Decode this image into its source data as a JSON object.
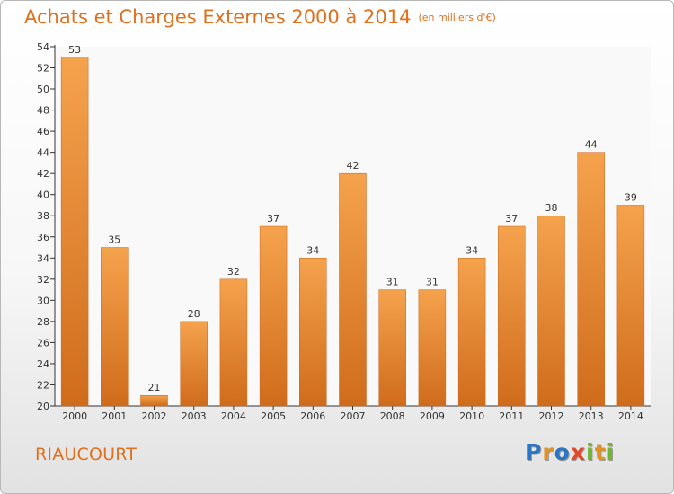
{
  "header": {
    "title": "Achats et Charges Externes 2000 à 2014",
    "unit": "(en milliers d'€)"
  },
  "footer": {
    "commune": "RIAUCOURT",
    "logo_letters": [
      "P",
      "r",
      "o",
      "x",
      "i",
      "t",
      "i"
    ]
  },
  "colors": {
    "accent": "#e0701c",
    "bar_light": "#f5a24d",
    "bar_dark": "#cf6c1c"
  },
  "chart_data": {
    "type": "bar",
    "title": "Achats et Charges Externes 2000 à 2014",
    "subtitle": "(en milliers d'€)",
    "categories": [
      "2000",
      "2001",
      "2002",
      "2003",
      "2004",
      "2005",
      "2006",
      "2007",
      "2008",
      "2009",
      "2010",
      "2011",
      "2012",
      "2013",
      "2014"
    ],
    "values": [
      53,
      35,
      21,
      28,
      32,
      37,
      34,
      42,
      31,
      31,
      34,
      37,
      38,
      44,
      39
    ],
    "data_labels": [
      "53",
      "35",
      "21",
      "28",
      "32",
      "37",
      "34",
      "42",
      "31",
      "31",
      "34",
      "37",
      "38",
      "44",
      "39"
    ],
    "yticks": [
      "20",
      "22",
      "24",
      "26",
      "28",
      "30",
      "32",
      "34",
      "36",
      "38",
      "40",
      "42",
      "44",
      "46",
      "48",
      "50",
      "52",
      "54"
    ],
    "ylim": [
      20,
      54
    ],
    "xlabel": "",
    "ylabel": "",
    "grid": false,
    "legend": "none"
  }
}
